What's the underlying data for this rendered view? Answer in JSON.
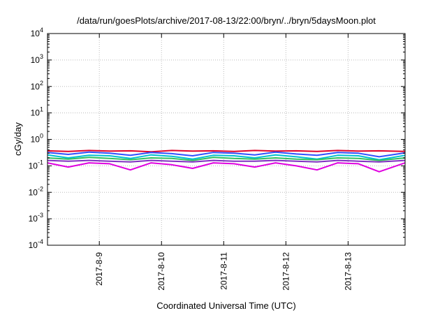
{
  "chart_data": {
    "type": "line",
    "title": "/data/run/goesPlots/archive/2017-08-13/22:00/bryn/../bryn/5daysMoon.plot",
    "xlabel": "Coordinated Universal Time (UTC)",
    "ylabel": "cGy/day",
    "yscale": "log",
    "ylim": [
      0.0001,
      10000
    ],
    "xlim": [
      "2017-08-08 04:00",
      "2017-08-13 22:00"
    ],
    "grid": true,
    "legend": "none",
    "y_ticks": [
      {
        "base": "10",
        "exp": "4",
        "value": 10000
      },
      {
        "base": "10",
        "exp": "3",
        "value": 1000
      },
      {
        "base": "10",
        "exp": "2",
        "value": 100
      },
      {
        "base": "10",
        "exp": "1",
        "value": 10
      },
      {
        "base": "10",
        "exp": "0",
        "value": 1
      },
      {
        "base": "10",
        "exp": "-1",
        "value": 0.1
      },
      {
        "base": "10",
        "exp": "-2",
        "value": 0.01
      },
      {
        "base": "10",
        "exp": "-3",
        "value": 0.001
      },
      {
        "base": "10",
        "exp": "-4",
        "value": 0.0001
      }
    ],
    "x_ticks": [
      "2017-8-9",
      "2017-8-10",
      "2017-8-11",
      "2017-8-12",
      "2017-8-13"
    ],
    "x": [
      "2017-08-08 04:00",
      "2017-08-08 12:00",
      "2017-08-08 20:00",
      "2017-08-09 04:00",
      "2017-08-09 12:00",
      "2017-08-09 20:00",
      "2017-08-10 04:00",
      "2017-08-10 12:00",
      "2017-08-10 20:00",
      "2017-08-11 04:00",
      "2017-08-11 12:00",
      "2017-08-11 20:00",
      "2017-08-12 04:00",
      "2017-08-12 12:00",
      "2017-08-12 20:00",
      "2017-08-13 04:00",
      "2017-08-13 12:00",
      "2017-08-13 22:00"
    ],
    "series": [
      {
        "color": "#e0002a",
        "values": [
          0.37,
          0.35,
          0.38,
          0.36,
          0.37,
          0.34,
          0.38,
          0.36,
          0.37,
          0.35,
          0.38,
          0.36,
          0.37,
          0.35,
          0.38,
          0.36,
          0.37,
          0.35
        ]
      },
      {
        "color": "#3050ff",
        "values": [
          0.32,
          0.27,
          0.33,
          0.3,
          0.25,
          0.32,
          0.29,
          0.24,
          0.32,
          0.3,
          0.26,
          0.33,
          0.28,
          0.25,
          0.32,
          0.3,
          0.22,
          0.31
        ]
      },
      {
        "color": "#00c0d0",
        "values": [
          0.26,
          0.2,
          0.25,
          0.24,
          0.19,
          0.26,
          0.23,
          0.18,
          0.25,
          0.24,
          0.2,
          0.26,
          0.22,
          0.18,
          0.25,
          0.24,
          0.17,
          0.25
        ]
      },
      {
        "color": "#30c060",
        "values": [
          0.2,
          0.18,
          0.21,
          0.19,
          0.17,
          0.2,
          0.19,
          0.16,
          0.21,
          0.19,
          0.18,
          0.2,
          0.18,
          0.17,
          0.2,
          0.19,
          0.16,
          0.2
        ]
      },
      {
        "color": "#8030c0",
        "values": [
          0.16,
          0.15,
          0.16,
          0.15,
          0.14,
          0.16,
          0.15,
          0.14,
          0.16,
          0.15,
          0.15,
          0.16,
          0.15,
          0.14,
          0.16,
          0.15,
          0.14,
          0.16
        ]
      },
      {
        "color": "#e000e0",
        "values": [
          0.13,
          0.09,
          0.13,
          0.12,
          0.07,
          0.13,
          0.11,
          0.08,
          0.13,
          0.12,
          0.09,
          0.13,
          0.1,
          0.07,
          0.13,
          0.12,
          0.06,
          0.13
        ]
      }
    ]
  }
}
